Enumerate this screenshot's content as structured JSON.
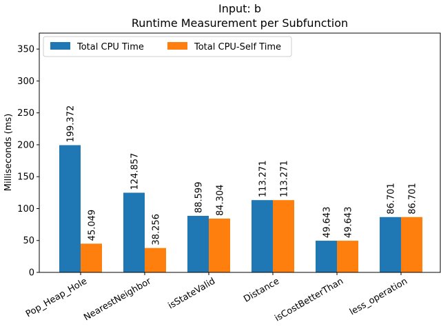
{
  "chart_data": {
    "type": "bar",
    "title": "Input: b",
    "subtitle": "Runtime Measurement per Subfunction",
    "xlabel": "",
    "ylabel": "Milliseconds (ms)",
    "ylim": [
      0,
      375
    ],
    "yticks": [
      "0",
      "50",
      "100",
      "150",
      "200",
      "250",
      "300",
      "350"
    ],
    "categories": [
      "Pop_Heap_Hole",
      "NearestNeighbor",
      "isStateValid",
      "Distance",
      "isCostBetterThan",
      "less_operation"
    ],
    "series": [
      {
        "name": "Total CPU Time",
        "color": "#1f77b4",
        "values": [
          199.372,
          124.857,
          88.599,
          113.271,
          49.643,
          86.701
        ],
        "labels": [
          "199.372",
          "124.857",
          "88.599",
          "113.271",
          "49.643",
          "86.701"
        ]
      },
      {
        "name": "Total CPU-Self Time",
        "color": "#ff7f0e",
        "values": [
          45.049,
          38.256,
          84.304,
          113.271,
          49.643,
          86.701
        ],
        "labels": [
          "45.049",
          "38.256",
          "84.304",
          "113.271",
          "49.643",
          "86.701"
        ]
      }
    ],
    "legend_position": "top-left",
    "grid": false
  }
}
